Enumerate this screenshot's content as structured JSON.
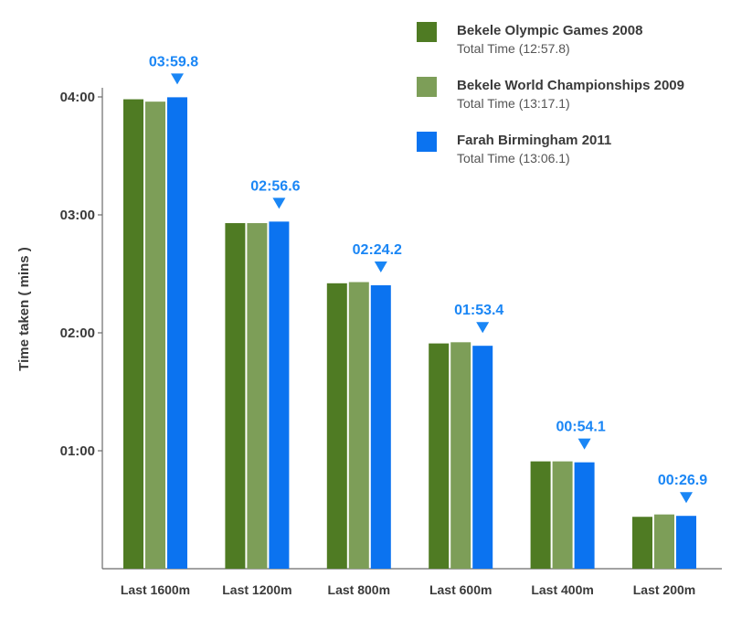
{
  "chart_data": {
    "type": "bar",
    "title": "",
    "xlabel": "",
    "ylabel": "Time taken ( mins )",
    "ylim": [
      0,
      4
    ],
    "yticks": [
      {
        "value": 1,
        "label": "01:00"
      },
      {
        "value": 2,
        "label": "02:00"
      },
      {
        "value": 3,
        "label": "03:00"
      },
      {
        "value": 4,
        "label": "04:00"
      }
    ],
    "categories": [
      "Last 1600m",
      "Last 1200m",
      "Last 800m",
      "Last 600m",
      "Last 400m",
      "Last 200m"
    ],
    "series": [
      {
        "name": "Bekele Olympic Games 2008",
        "subtitle": "Total Time (12:57.8)",
        "color": "#4f7b23",
        "values": [
          3.98,
          2.93,
          2.42,
          1.91,
          0.91,
          0.44
        ]
      },
      {
        "name": "Bekele World Championships 2009",
        "subtitle": "Total Time (13:17.1)",
        "color": "#7d9e58",
        "values": [
          3.96,
          2.93,
          2.43,
          1.92,
          0.91,
          0.46
        ]
      },
      {
        "name": "Farah Birmingham 2011",
        "subtitle": "Total Time (13:06.1)",
        "color": "#0b73f0",
        "values": [
          3.997,
          2.943,
          2.403,
          1.89,
          0.902,
          0.448
        ]
      }
    ],
    "data_labels": [
      "03:59.8",
      "02:56.6",
      "02:24.2",
      "01:53.4",
      "00:54.1",
      "00:26.9"
    ],
    "data_label_color": "#1a86f5",
    "legend_position": "top-right",
    "grid": false
  }
}
